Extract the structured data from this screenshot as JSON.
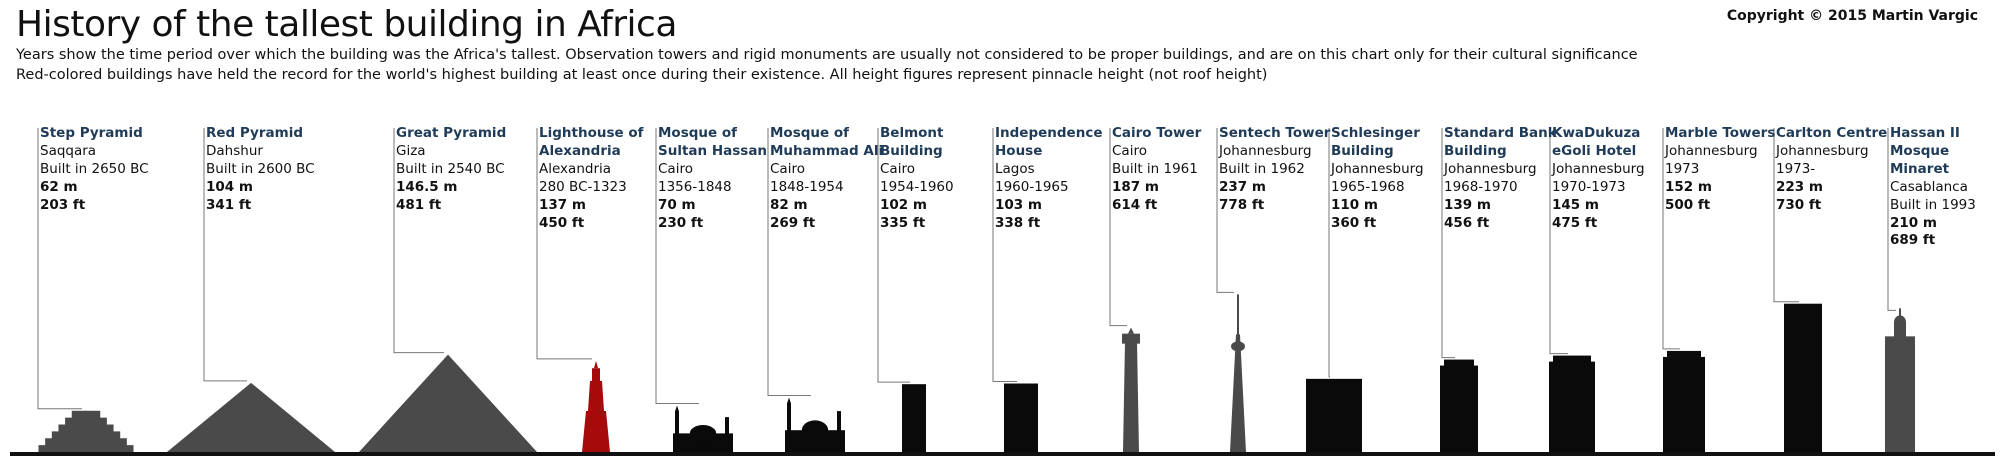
{
  "title": "History of the tallest building in Africa",
  "copyright": "Copyright © 2015 Martin Vargic",
  "subtitle_lines": [
    "Years show the time period over which the building was the Africa's tallest. Observation towers and rigid monuments are usually not considered to be proper buildings, and are on this chart only for their cultural significance",
    "Red-colored buildings have held the record for the world's highest building at least once during  their existence. All height figures represent pinnacle height (not roof height)"
  ],
  "colors": {
    "building": "#0a0a0a",
    "tower_grey": "#4a4a4a",
    "world_record_red": "#a50b0b",
    "name_text": "#1f3b57",
    "ground": "#111111",
    "leader_line": "#777777"
  },
  "buildings": [
    {
      "name": "Step Pyramid",
      "location": "Saqqara",
      "period": "Built in 2650 BC",
      "height_m": "62 m",
      "height_ft": "203 ft",
      "meters": 62,
      "shape": "step-pyramid",
      "color": "grey"
    },
    {
      "name": "Red Pyramid",
      "location": "Dahshur",
      "period": "Built in 2600 BC",
      "height_m": "104 m",
      "height_ft": "341 ft",
      "meters": 104,
      "shape": "pyramid",
      "color": "grey"
    },
    {
      "name": "Great Pyramid",
      "location": "Giza",
      "period": "Built in 2540 BC",
      "height_m": "146.5 m",
      "height_ft": "481 ft",
      "meters": 146.5,
      "shape": "pyramid",
      "color": "grey"
    },
    {
      "name": "Lighthouse of Alexandria",
      "location": "Alexandria",
      "period": "280 BC-1323",
      "height_m": "137 m",
      "height_ft": "450 ft",
      "meters": 137,
      "shape": "lighthouse",
      "color": "red"
    },
    {
      "name": "Mosque of Sultan Hassan",
      "location": "Cairo",
      "period": "1356-1848",
      "height_m": "70 m",
      "height_ft": "230 ft",
      "meters": 70,
      "shape": "mosque",
      "color": "black"
    },
    {
      "name": "Mosque of Muhammad Ali",
      "location": "Cairo",
      "period": "1848-1954",
      "height_m": "82 m",
      "height_ft": "269 ft",
      "meters": 82,
      "shape": "mosque",
      "color": "black"
    },
    {
      "name": "Belmont Building",
      "location": "Cairo",
      "period": "1954-1960",
      "height_m": "102 m",
      "height_ft": "335 ft",
      "meters": 102,
      "shape": "block",
      "color": "black"
    },
    {
      "name": "Independence House",
      "location": "Lagos",
      "period": "1960-1965",
      "height_m": "103 m",
      "height_ft": "338 ft",
      "meters": 103,
      "shape": "block",
      "color": "black"
    },
    {
      "name": "Cairo Tower",
      "location": "Cairo",
      "period": "Built in 1961",
      "height_m": "187 m",
      "height_ft": "614 ft",
      "meters": 187,
      "shape": "slim-tower",
      "color": "grey"
    },
    {
      "name": "Sentech Tower",
      "location": "Johannesburg",
      "period": "Built in 1962",
      "height_m": "237 m",
      "height_ft": "778 ft",
      "meters": 237,
      "shape": "tv-tower",
      "color": "grey"
    },
    {
      "name": "Schlesinger Building",
      "location": "Johannesburg",
      "period": "1965-1968",
      "height_m": "110 m",
      "height_ft": "360 ft",
      "meters": 110,
      "shape": "block",
      "color": "black"
    },
    {
      "name": "Standard Bank Building",
      "location": "Johannesburg",
      "period": "1968-1970",
      "height_m": "139 m",
      "height_ft": "456 ft",
      "meters": 139,
      "shape": "tower",
      "color": "black"
    },
    {
      "name": "KwaDukuza eGoli Hotel",
      "location": "Johannesburg",
      "period": "1970-1973",
      "height_m": "145 m",
      "height_ft": "475 ft",
      "meters": 145,
      "shape": "tower",
      "color": "black"
    },
    {
      "name": "Marble Towers",
      "location": "Johannesburg",
      "period": "1973",
      "height_m": "152 m",
      "height_ft": "500 ft",
      "meters": 152,
      "shape": "tower",
      "color": "black"
    },
    {
      "name": "Carlton Centre",
      "location": "Johannesburg",
      "period": "1973-",
      "height_m": "223 m",
      "height_ft": "730 ft",
      "meters": 223,
      "shape": "block",
      "color": "black"
    },
    {
      "name": "Hassan II Mosque Minaret",
      "location": "Casablanca",
      "period": "Built in 1993",
      "height_m": "210 m",
      "height_ft": "689 ft",
      "meters": 210,
      "shape": "minaret",
      "color": "grey"
    }
  ]
}
